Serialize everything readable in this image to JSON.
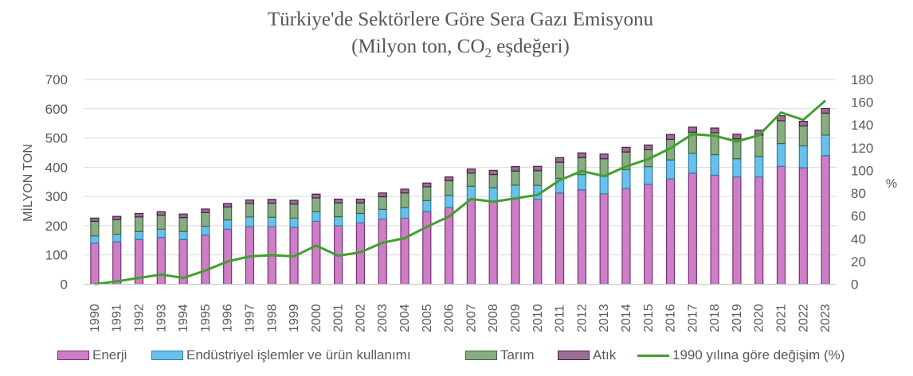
{
  "chart_data": {
    "type": "bar",
    "stacked": true,
    "title_line1": "Türkiye'de Sektörlere Göre Sera Gazı Emisyonu",
    "title_line2_prefix": "(Milyon ton, CO",
    "title_line2_sub": "2",
    "title_line2_suffix": " eşdeğeri)",
    "ylabel_left": "MİLYON TON",
    "ylabel_right": "%",
    "ylim_left": [
      0,
      700
    ],
    "yticks_left": [
      "0",
      "100",
      "200",
      "300",
      "400",
      "500",
      "600",
      "700"
    ],
    "ylim_right": [
      0,
      180
    ],
    "yticks_right": [
      "0",
      "20",
      "40",
      "60",
      "80",
      "100",
      "120",
      "140",
      "160",
      "180"
    ],
    "categories": [
      "1990",
      "1991",
      "1992",
      "1993",
      "1994",
      "1995",
      "1996",
      "1997",
      "1998",
      "1999",
      "2000",
      "2001",
      "2002",
      "2003",
      "2004",
      "2005",
      "2006",
      "2007",
      "2008",
      "2009",
      "2010",
      "2011",
      "2012",
      "2013",
      "2014",
      "2015",
      "2016",
      "2017",
      "2018",
      "2019",
      "2020",
      "2021",
      "2022",
      "2023"
    ],
    "series": [
      {
        "name": "Enerji",
        "color": "#cc7fc4",
        "border": "#7a2f73",
        "values": [
          140,
          145,
          153,
          160,
          153,
          168,
          188,
          197,
          197,
          195,
          215,
          200,
          210,
          222,
          226,
          248,
          262,
          290,
          285,
          292,
          290,
          312,
          323,
          309,
          327,
          342,
          360,
          380,
          373,
          367,
          367,
          403,
          398,
          440
        ]
      },
      {
        "name": "Endüstriyel işlemler ve ürün kullanımı",
        "color": "#69c0ea",
        "border": "#2f7fb0",
        "values": [
          25,
          26,
          27,
          28,
          27,
          30,
          32,
          33,
          32,
          31,
          33,
          31,
          32,
          34,
          36,
          38,
          42,
          45,
          45,
          47,
          48,
          50,
          52,
          60,
          65,
          60,
          65,
          68,
          70,
          62,
          70,
          78,
          75,
          70
        ]
      },
      {
        "name": "Tarım",
        "color": "#8aac83",
        "border": "#3c6a3a",
        "values": [
          50,
          50,
          50,
          48,
          48,
          47,
          44,
          46,
          48,
          48,
          47,
          47,
          36,
          43,
          50,
          47,
          50,
          45,
          45,
          48,
          50,
          55,
          58,
          60,
          60,
          58,
          70,
          72,
          75,
          68,
          73,
          78,
          68,
          75
        ]
      },
      {
        "name": "Atık",
        "color": "#9a6e94",
        "border": "#4a1f46",
        "values": [
          11,
          11,
          12,
          12,
          12,
          12,
          12,
          12,
          13,
          13,
          13,
          13,
          13,
          13,
          13,
          13,
          13,
          14,
          14,
          15,
          15,
          16,
          16,
          16,
          16,
          16,
          17,
          17,
          16,
          16,
          17,
          17,
          16,
          16
        ]
      }
    ],
    "line_series": {
      "name": "1990 yılına göre değişim (%)",
      "color": "#3fa02e",
      "axis": "right",
      "values": [
        0,
        2.5,
        5.5,
        8.5,
        5.5,
        12,
        20,
        24.5,
        25.5,
        24.5,
        34,
        25,
        28,
        36.5,
        40.5,
        50.5,
        59.5,
        75,
        72.5,
        75.5,
        78.5,
        91.5,
        99.5,
        95,
        103.5,
        110,
        119.5,
        132,
        130.5,
        125.5,
        131,
        151,
        144.5,
        161.5
      ]
    },
    "legend_position": "bottom",
    "grid": "horizontal"
  },
  "legend": {
    "energy": "Enerji",
    "industry": "Endüstriyel işlemler ve ürün kullanımı",
    "agri": "Tarım",
    "waste": "Atık",
    "change": "1990 yılına göre değişim (%)"
  }
}
